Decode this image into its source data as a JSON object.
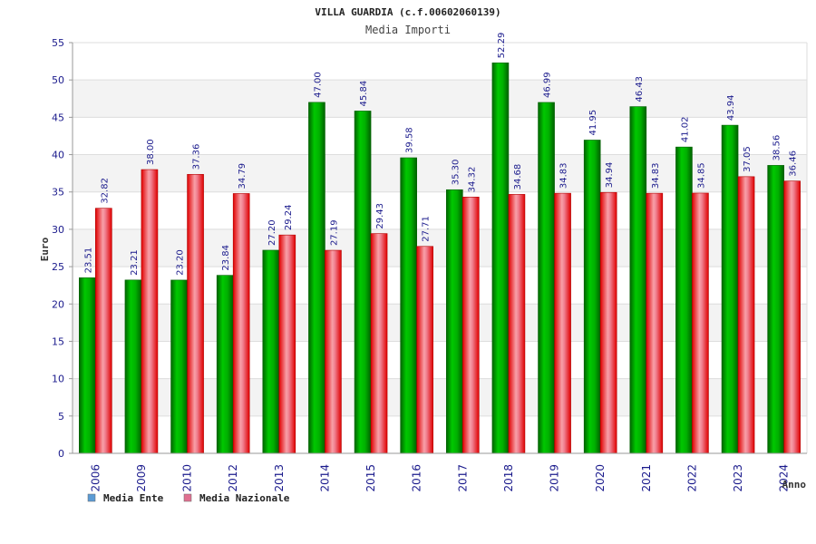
{
  "chart_data": {
    "type": "bar",
    "title": "VILLA GUARDIA (c.f.00602060139)",
    "subtitle": "Media Importi",
    "ylabel": "Euro",
    "xlabel": "Anno",
    "ylim": [
      0,
      55
    ],
    "yticks": [
      0,
      5,
      10,
      15,
      20,
      25,
      30,
      35,
      40,
      45,
      50,
      55
    ],
    "grid": "horizontal bands",
    "legend_position": "bottom-left",
    "categories": [
      "2006",
      "2009",
      "2010",
      "2012",
      "2013",
      "2014",
      "2015",
      "2016",
      "2017",
      "2018",
      "2019",
      "2020",
      "2021",
      "2022",
      "2023",
      "2024"
    ],
    "series": [
      {
        "name": "Media Ente",
        "values": [
          23.51,
          23.21,
          23.2,
          23.84,
          27.2,
          47.0,
          45.84,
          39.58,
          35.3,
          52.29,
          46.99,
          41.95,
          46.43,
          41.02,
          43.94,
          38.56
        ],
        "labels": [
          "23.51",
          "23.21",
          "23.20",
          "23.84",
          "27.20",
          "47.00",
          "45.84",
          "39.58",
          "35.30",
          "52.29",
          "46.99",
          "41.95",
          "46.43",
          "41.02",
          "43.94",
          "38.56"
        ],
        "color": "#00b400",
        "legend_color": "#5b9bd5"
      },
      {
        "name": "Media Nazionale",
        "values": [
          32.82,
          38.0,
          37.36,
          34.79,
          29.24,
          27.19,
          29.43,
          27.71,
          34.32,
          34.68,
          34.83,
          34.94,
          34.83,
          34.85,
          37.05,
          36.46
        ],
        "labels": [
          "32.82",
          "38.00",
          "37.36",
          "34.79",
          "29.24",
          "27.19",
          "29.43",
          "27.71",
          "34.32",
          "34.68",
          "34.83",
          "34.94",
          "34.83",
          "34.85",
          "37.05",
          "36.46"
        ],
        "color": "#e8001e",
        "legend_color": "#e07090"
      }
    ]
  }
}
